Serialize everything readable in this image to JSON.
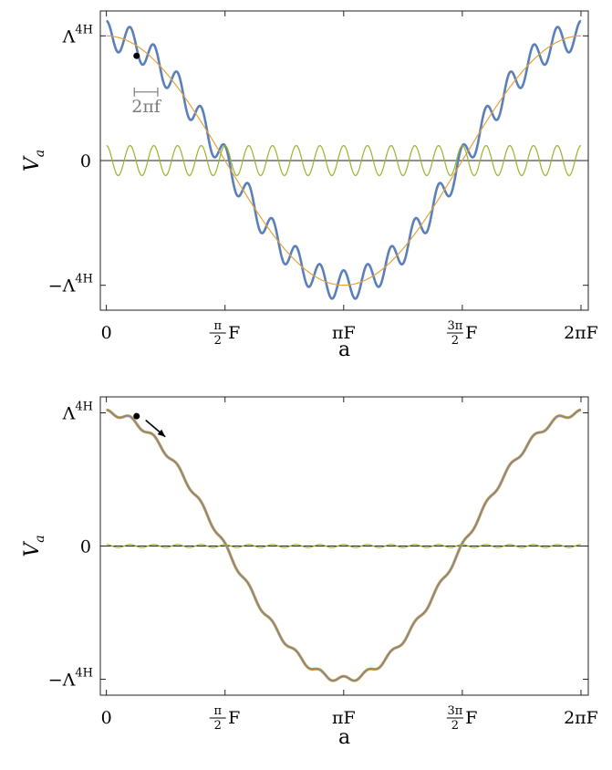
{
  "chart_data": [
    {
      "type": "line",
      "panel": "top",
      "xlabel": "a",
      "ylabel": "V",
      "ylabel_sub": "a",
      "x_domain": [
        0,
        6.283185307
      ],
      "xlim": [
        -0.08,
        6.38
      ],
      "ylim": [
        -1.2,
        1.2
      ],
      "x_ticks": [
        {
          "value": 0,
          "label": "0"
        },
        {
          "value": 1.570796327,
          "frac_num": "π",
          "frac_den": "2",
          "suffix": "F"
        },
        {
          "value": 3.141592654,
          "label": "πF"
        },
        {
          "value": 4.71238898,
          "frac_num": "3π",
          "frac_den": "2",
          "suffix": "F"
        },
        {
          "value": 6.283185307,
          "label": "2πF"
        }
      ],
      "y_ticks": [
        {
          "value": 1,
          "base": "Λ",
          "sub": "H",
          "sup": "4",
          "prefix": ""
        },
        {
          "value": 0,
          "label": "0"
        },
        {
          "value": -1,
          "base": "Λ",
          "sub": "H",
          "sup": "4",
          "prefix": "−"
        }
      ],
      "series": [
        {
          "role": "total",
          "color": "#5b7fb9",
          "width": 2.6,
          "base_amp": 1.0,
          "osc_amp": 0.12,
          "osc_freq": 20,
          "osc_phase": 0
        },
        {
          "role": "slow",
          "color": "#e3a33a",
          "width": 1.2,
          "base_amp": 1.0,
          "osc_amp": 0.0,
          "osc_freq": 20,
          "osc_phase": 0
        },
        {
          "role": "fast",
          "color": "#9bb22b",
          "width": 1.2,
          "base_amp": 0.0,
          "osc_amp": 0.12,
          "osc_freq": 20,
          "osc_phase": 0
        }
      ],
      "marker": {
        "x": 0.4,
        "y": 0.84
      },
      "annotation": {
        "label": "2πf",
        "x_start": 0.37,
        "x_end": 0.68,
        "y": 0.55
      }
    },
    {
      "type": "line",
      "panel": "bottom",
      "xlabel": "a",
      "ylabel": "V",
      "ylabel_sub": "a",
      "x_domain": [
        0,
        6.283185307
      ],
      "xlim": [
        -0.08,
        6.38
      ],
      "ylim": [
        -1.12,
        1.12
      ],
      "x_ticks": [
        {
          "value": 0,
          "label": "0"
        },
        {
          "value": 1.570796327,
          "frac_num": "π",
          "frac_den": "2",
          "suffix": "F"
        },
        {
          "value": 3.141592654,
          "label": "πF"
        },
        {
          "value": 4.71238898,
          "frac_num": "3π",
          "frac_den": "2",
          "suffix": "F"
        },
        {
          "value": 6.283185307,
          "label": "2πF"
        }
      ],
      "y_ticks": [
        {
          "value": 1,
          "base": "Λ",
          "sub": "H",
          "sup": "4",
          "prefix": ""
        },
        {
          "value": 0,
          "label": "0"
        },
        {
          "value": -1,
          "base": "Λ",
          "sub": "H",
          "sup": "4",
          "prefix": "−"
        }
      ],
      "series": [
        {
          "role": "total-shadow",
          "color": "#e3a33a",
          "width": 3.2,
          "base_amp": 1.0,
          "osc_amp": 0.022,
          "osc_freq": 20,
          "osc_phase": 0
        },
        {
          "role": "total",
          "color": "#7b8a9a",
          "width": 1.8,
          "base_amp": 1.0,
          "osc_amp": 0.022,
          "osc_freq": 20,
          "osc_phase": 0
        },
        {
          "role": "fast",
          "color": "#9bb22b",
          "width": 1.1,
          "base_amp": 0.0,
          "osc_amp": 0.012,
          "osc_freq": 20,
          "osc_phase": 0
        }
      ],
      "marker": {
        "x": 0.4,
        "y": 0.975
      },
      "arrow": {
        "x_from": 0.52,
        "y_from": 0.945,
        "x_to": 0.78,
        "y_to": 0.82
      }
    }
  ]
}
